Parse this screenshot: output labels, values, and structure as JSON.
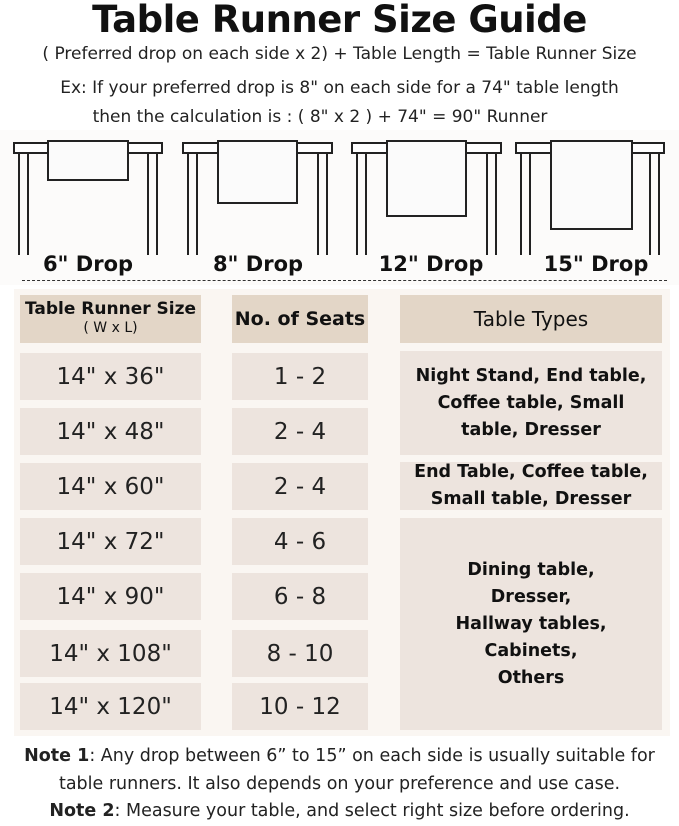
{
  "title": "Table Runner Size Guide",
  "formula": "( Preferred drop on each side x 2) + Table Length = Table Runner Size",
  "example_line1": "Ex: If your preferred drop is 8\" on each side for a 74\" table length",
  "example_line2": "then the calculation is : ( 8\" x 2 ) + 74\" = 90\" Runner",
  "drops": [
    "6\" Drop",
    "8\" Drop",
    "12\" Drop",
    "15\" Drop"
  ],
  "table": {
    "headers": {
      "size": "Table Runner Size",
      "size_sub": "( W x L)",
      "seats": "No. of Seats",
      "types": "Table Types"
    },
    "sizes": [
      "14\" x 36\"",
      "14\" x 48\"",
      "14\" x 60\"",
      "14\" x 72\"",
      "14\" x 90\"",
      "14\" x 108\"",
      "14\" x 120\""
    ],
    "seats": [
      "1 - 2",
      "2 - 4",
      "2 - 4",
      "4 - 6",
      "6 - 8",
      "8 - 10",
      "10 - 12"
    ],
    "types": [
      "Night Stand, End table, Coffee table, Small table, Dresser",
      "End Table, Coffee table, Small table, Dresser",
      "Dining table, Dresser, Hallway tables, Cabinets, Others"
    ]
  },
  "notes": {
    "note1_label": "Note 1",
    "note1_text": ": Any drop between 6” to 15” on each side is usually suitable for",
    "note1_line2": "table runners. It also depends on your preference and use case.",
    "note2_label": "Note 2",
    "note2_text": ": Measure your table, and select right size before ordering."
  },
  "colors": {
    "header_cell": "#e3d6c7",
    "body_cell": "#ede4de",
    "panel": "#faf6f2"
  }
}
